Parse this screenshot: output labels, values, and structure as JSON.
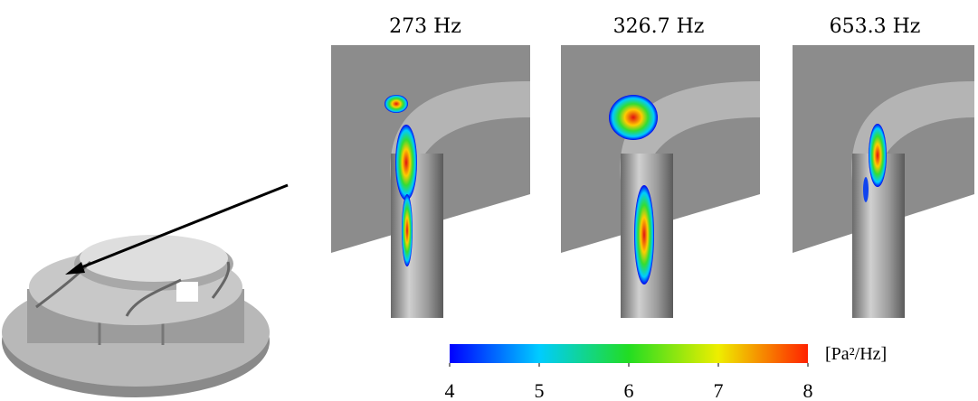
{
  "panels": [
    {
      "title": "273 Hz"
    },
    {
      "title": "326.7 Hz"
    },
    {
      "title": "653.3 Hz"
    }
  ],
  "colorbar": {
    "label": "[Pa²/Hz]",
    "lim": [
      4,
      8
    ],
    "ticks": [
      4,
      5,
      6,
      7,
      8
    ]
  }
}
